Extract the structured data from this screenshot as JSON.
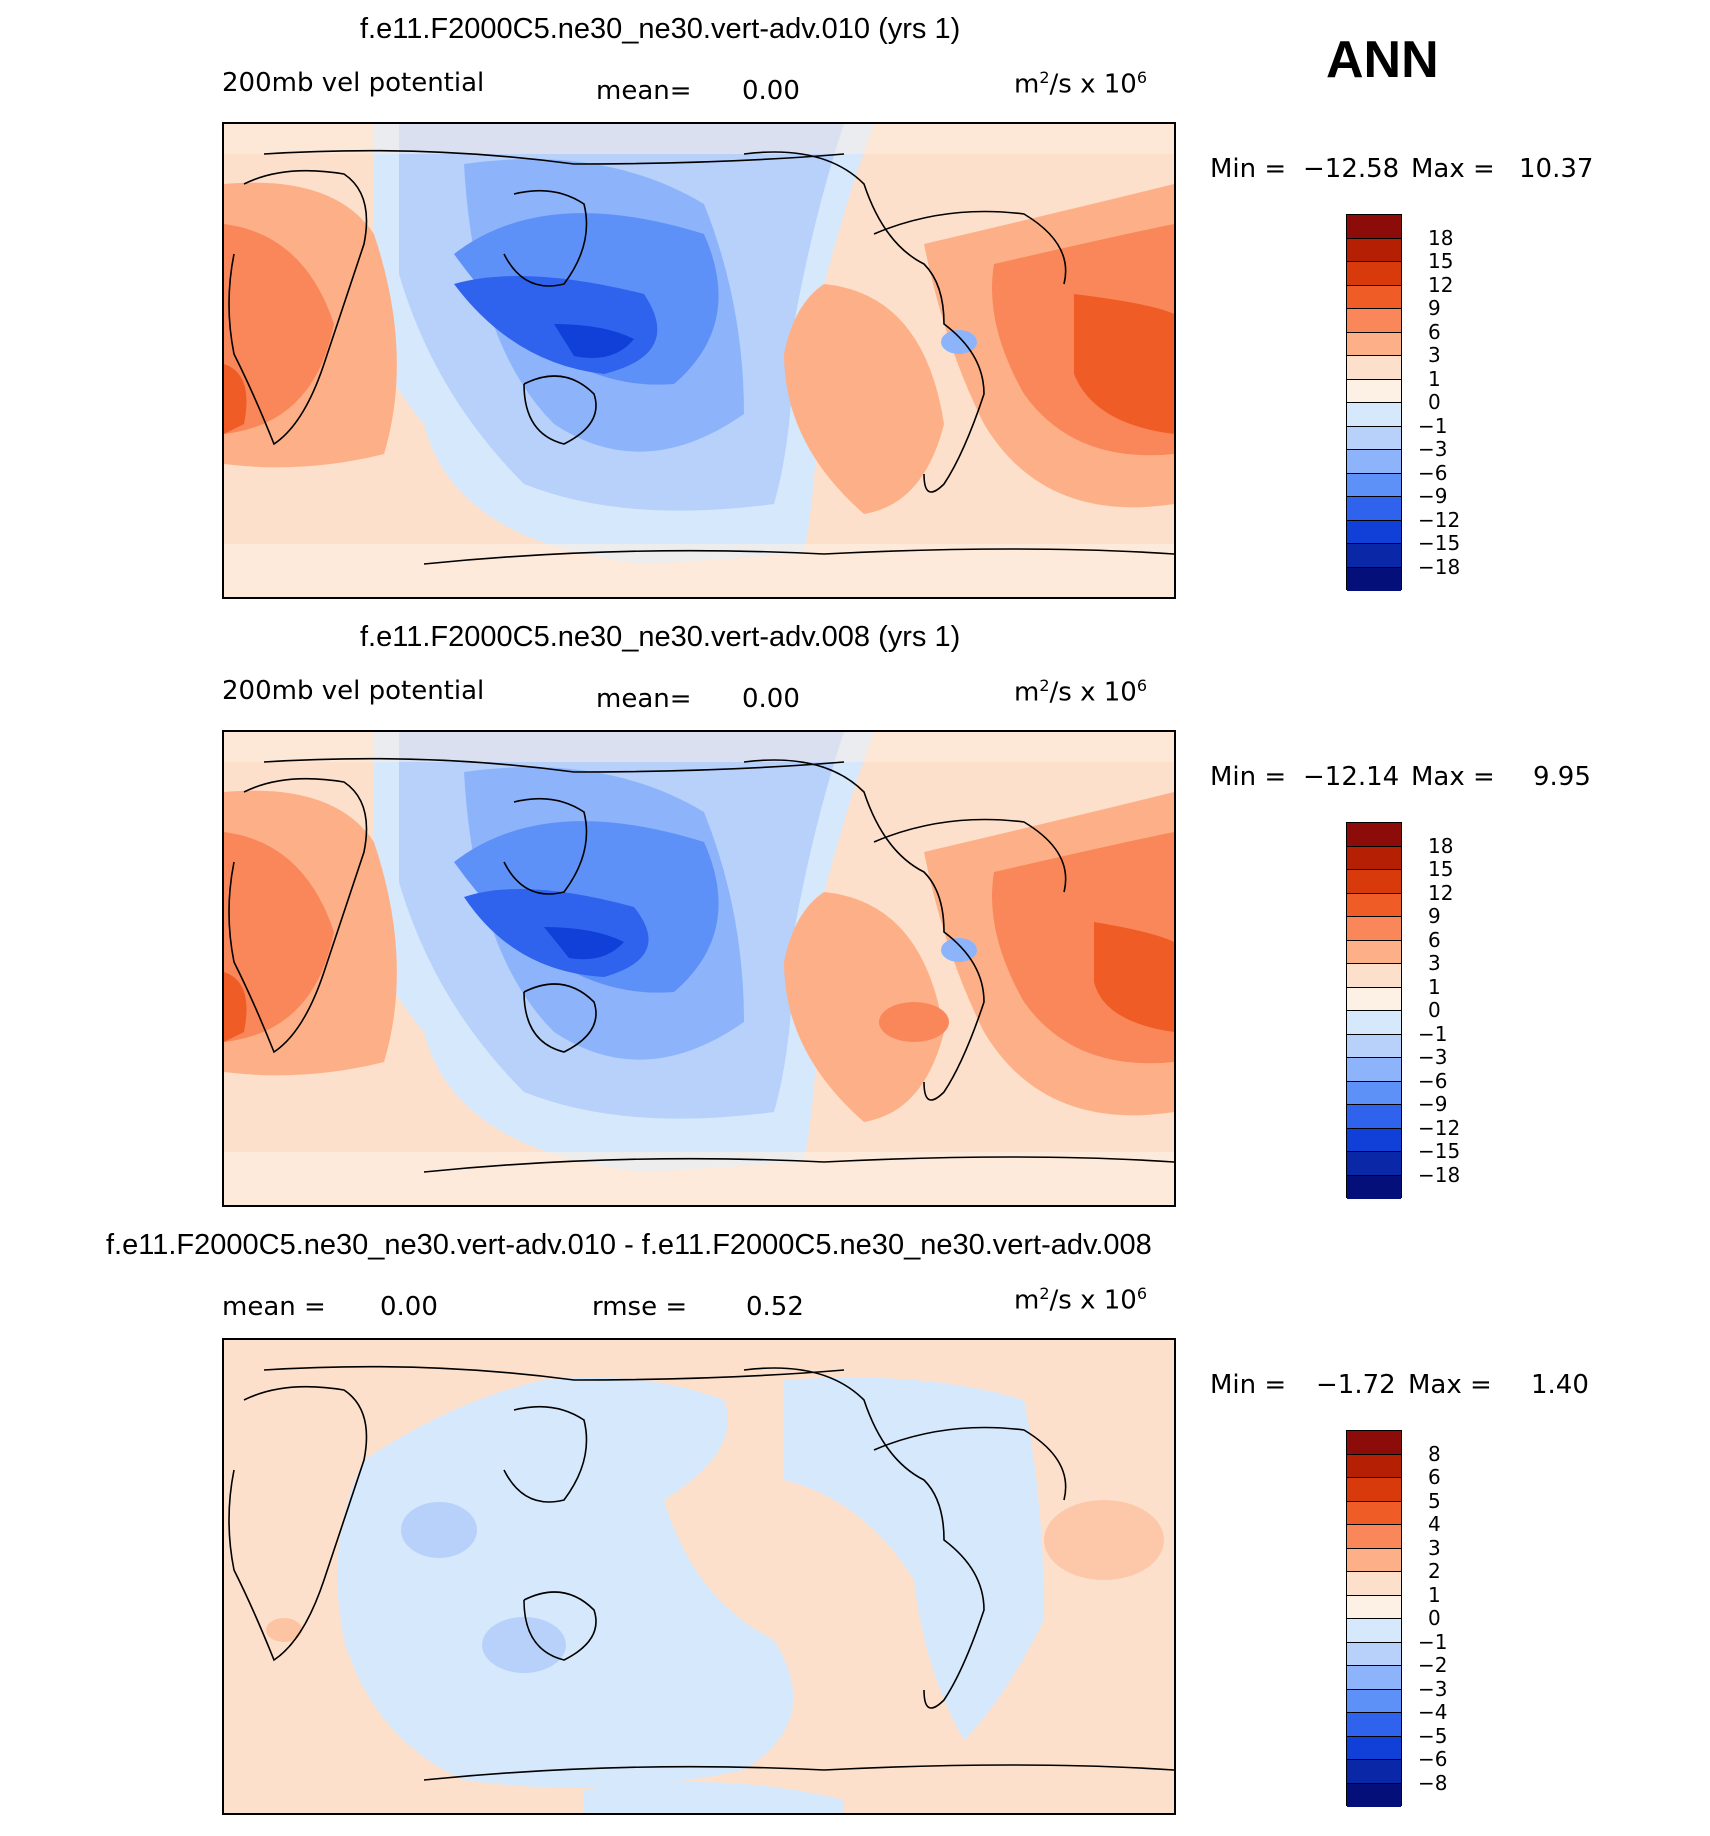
{
  "season": "ANN",
  "panels": [
    {
      "title": "f.e11.F2000C5.ne30_ne30.vert-adv.010 (yrs 1)",
      "variable": "200mb vel potential",
      "mean_label": "mean=",
      "mean_value": "0.00",
      "units_prefix": "m",
      "units_power": "2",
      "units_mid": "/s x 10",
      "units_exp": "6",
      "min_label": "Min =",
      "min_value": "−12.58",
      "max_label": "Max =",
      "max_value": "10.37",
      "colorbar_levels": [
        "18",
        "15",
        "12",
        "9",
        "6",
        "3",
        "1",
        "0",
        "−1",
        "−3",
        "−6",
        "−9",
        "−12",
        "−15",
        "−18"
      ],
      "colorbar_colors": [
        "#8b0c08",
        "#b51f04",
        "#d93a0c",
        "#ef5c25",
        "#f9875a",
        "#fdb088",
        "#fde0cb",
        "#fdf0e4",
        "#d6e8fb",
        "#b7d1fb",
        "#8db4fb",
        "#5e91f8",
        "#2f63ee",
        "#1040d7",
        "#0a27a8",
        "#050f7a"
      ]
    },
    {
      "title": "f.e11.F2000C5.ne30_ne30.vert-adv.008 (yrs 1)",
      "variable": "200mb vel potential",
      "mean_label": "mean=",
      "mean_value": "0.00",
      "units_prefix": "m",
      "units_power": "2",
      "units_mid": "/s x 10",
      "units_exp": "6",
      "min_label": "Min =",
      "min_value": "−12.14",
      "max_label": "Max =",
      "max_value": "9.95",
      "colorbar_levels": [
        "18",
        "15",
        "12",
        "9",
        "6",
        "3",
        "1",
        "0",
        "−1",
        "−3",
        "−6",
        "−9",
        "−12",
        "−15",
        "−18"
      ],
      "colorbar_colors": [
        "#8b0c08",
        "#b51f04",
        "#d93a0c",
        "#ef5c25",
        "#f9875a",
        "#fdb088",
        "#fde0cb",
        "#fdf0e4",
        "#d6e8fb",
        "#b7d1fb",
        "#8db4fb",
        "#5e91f8",
        "#2f63ee",
        "#1040d7",
        "#0a27a8",
        "#050f7a"
      ]
    },
    {
      "title": "f.e11.F2000C5.ne30_ne30.vert-adv.010 - f.e11.F2000C5.ne30_ne30.vert-adv.008",
      "mean_label": "mean =",
      "mean_value": "0.00",
      "rmse_label": "rmse =",
      "rmse_value": "0.52",
      "units_prefix": "m",
      "units_power": "2",
      "units_mid": "/s x 10",
      "units_exp": "6",
      "min_label": "Min =",
      "min_value": "−1.72",
      "max_label": "Max =",
      "max_value": "1.40",
      "colorbar_levels": [
        "8",
        "6",
        "5",
        "4",
        "3",
        "2",
        "1",
        "0",
        "−1",
        "−2",
        "−3",
        "−4",
        "−5",
        "−6",
        "−8"
      ],
      "colorbar_colors": [
        "#8b0c08",
        "#b51f04",
        "#d93a0c",
        "#ef5c25",
        "#f9875a",
        "#fdb088",
        "#fde0cb",
        "#fdf0e4",
        "#d6e8fb",
        "#b7d1fb",
        "#8db4fb",
        "#5e91f8",
        "#2f63ee",
        "#1040d7",
        "#0a27a8",
        "#050f7a"
      ]
    }
  ]
}
